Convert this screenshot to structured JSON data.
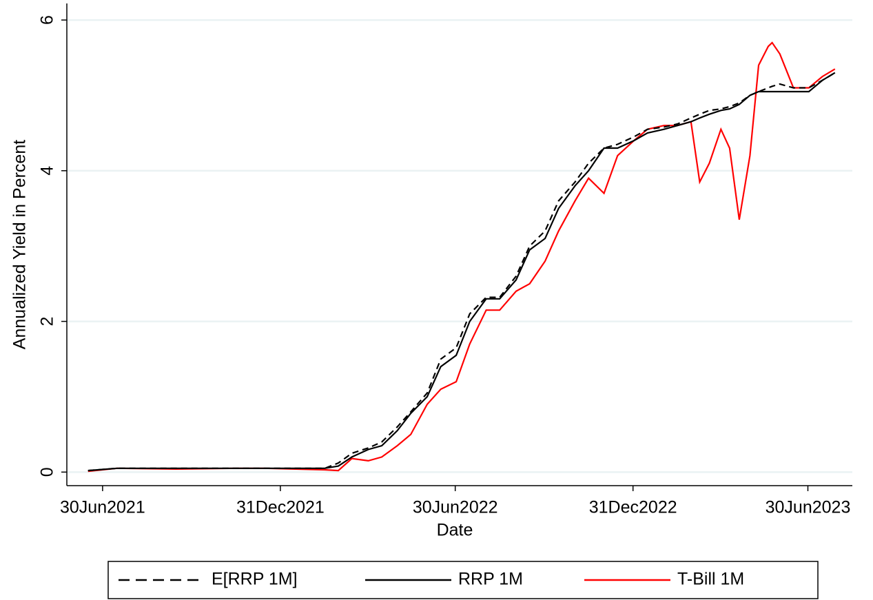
{
  "chart_data": {
    "type": "line",
    "x_label": "Date",
    "y_label": "Annualized Yield in Percent",
    "x": [
      "2021-06-15",
      "2021-07-15",
      "2021-09-15",
      "2021-11-15",
      "2021-12-15",
      "2022-01-15",
      "2022-02-15",
      "2022-03-01",
      "2022-03-15",
      "2022-04-01",
      "2022-04-15",
      "2022-05-01",
      "2022-05-15",
      "2022-06-01",
      "2022-06-15",
      "2022-07-01",
      "2022-07-15",
      "2022-08-01",
      "2022-08-15",
      "2022-09-01",
      "2022-09-15",
      "2022-10-01",
      "2022-10-15",
      "2022-11-01",
      "2022-11-15",
      "2022-12-01",
      "2022-12-15",
      "2023-01-01",
      "2023-01-15",
      "2023-02-01",
      "2023-02-15",
      "2023-03-01",
      "2023-03-10",
      "2023-03-20",
      "2023-04-01",
      "2023-04-10",
      "2023-04-20",
      "2023-05-01",
      "2023-05-10",
      "2023-05-20",
      "2023-05-24",
      "2023-06-01",
      "2023-06-15",
      "2023-07-01",
      "2023-07-15",
      "2023-07-28"
    ],
    "series": [
      {
        "name": "E[RRP 1M]",
        "color": "#000000",
        "linestyle": "dashed",
        "values": [
          0.02,
          0.05,
          0.05,
          0.05,
          0.05,
          0.05,
          0.05,
          0.12,
          0.25,
          0.32,
          0.4,
          0.6,
          0.8,
          1.05,
          1.5,
          1.65,
          2.1,
          2.32,
          2.32,
          2.6,
          3.0,
          3.2,
          3.6,
          3.85,
          4.1,
          4.3,
          4.35,
          4.45,
          4.55,
          4.58,
          4.62,
          4.7,
          4.75,
          4.8,
          4.82,
          4.85,
          4.9,
          5.0,
          5.05,
          5.1,
          5.12,
          5.15,
          5.1,
          5.1,
          5.2,
          5.3
        ]
      },
      {
        "name": "RRP 1M",
        "color": "#000000",
        "linestyle": "solid",
        "values": [
          0.02,
          0.05,
          0.05,
          0.05,
          0.05,
          0.05,
          0.05,
          0.08,
          0.2,
          0.3,
          0.35,
          0.55,
          0.78,
          1.0,
          1.4,
          1.55,
          2.0,
          2.3,
          2.3,
          2.55,
          2.95,
          3.1,
          3.5,
          3.8,
          4.0,
          4.3,
          4.3,
          4.4,
          4.5,
          4.55,
          4.6,
          4.65,
          4.7,
          4.75,
          4.8,
          4.82,
          4.88,
          5.0,
          5.05,
          5.05,
          5.05,
          5.05,
          5.05,
          5.05,
          5.2,
          5.3
        ]
      },
      {
        "name": "T-Bill 1M",
        "color": "#ff0000",
        "linestyle": "solid",
        "values": [
          0.01,
          0.05,
          0.04,
          0.05,
          0.05,
          0.04,
          0.03,
          0.02,
          0.18,
          0.15,
          0.2,
          0.35,
          0.5,
          0.9,
          1.1,
          1.2,
          1.7,
          2.15,
          2.15,
          2.4,
          2.5,
          2.8,
          3.2,
          3.6,
          3.9,
          3.7,
          4.2,
          4.4,
          4.55,
          4.6,
          4.6,
          4.65,
          3.85,
          4.1,
          4.55,
          4.3,
          3.35,
          4.2,
          5.4,
          5.65,
          5.7,
          5.55,
          5.1,
          5.1,
          5.25,
          5.35
        ]
      }
    ],
    "xlim": [
      "2021-05-24",
      "2023-08-15"
    ],
    "xticks": [
      {
        "value": "2021-06-30",
        "label": "30Jun2021"
      },
      {
        "value": "2021-12-31",
        "label": "31Dec2021"
      },
      {
        "value": "2022-06-30",
        "label": "30Jun2022"
      },
      {
        "value": "2022-12-31",
        "label": "31Dec2022"
      },
      {
        "value": "2023-06-30",
        "label": "30Jun2023"
      }
    ],
    "ylim": [
      -0.18,
      6.22
    ],
    "yticks": [
      0,
      2,
      4,
      6
    ],
    "grid": true,
    "legend": "bottom"
  }
}
